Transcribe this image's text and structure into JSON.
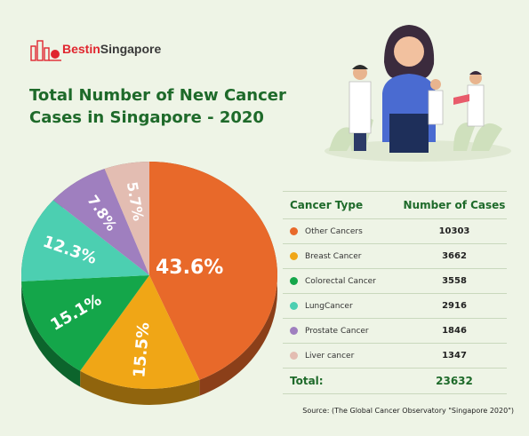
{
  "brand": {
    "name_part1": "Bestin",
    "name_part2": "Singapore"
  },
  "title": "Total Number of New Cancer Cases in Singapore - 2020",
  "table": {
    "header_type": "Cancer Type",
    "header_cases": "Number of Cases",
    "total_label": "Total:",
    "total_value": "23632"
  },
  "source": "Source: (The Global Cancer Observatory \"Singapore 2020\")",
  "chart_data": {
    "type": "pie",
    "categories": [
      "Other Cancers",
      "Breast Cancer",
      "Colorectal Cancer",
      "LungCancer",
      "Prostate Cancer",
      "Liver cancer"
    ],
    "values": [
      10303,
      3662,
      3558,
      2916,
      1846,
      1347
    ],
    "labels": [
      "43.6%",
      "15.5%",
      "15.1%",
      "12.3%",
      "7.8%",
      "5.7%"
    ],
    "colors": [
      "#e8692a",
      "#f0a616",
      "#14a64a",
      "#4ccfb1",
      "#9f7fbf",
      "#e3bdb2"
    ]
  }
}
